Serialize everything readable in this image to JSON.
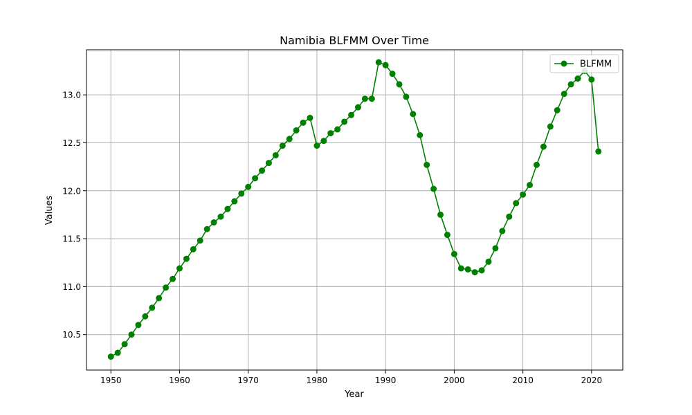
{
  "chart_data": {
    "type": "line",
    "title": "Namibia BLFMM Over Time",
    "xlabel": "Year",
    "ylabel": "Values",
    "xlim": [
      1946.45,
      2024.55
    ],
    "ylim": [
      10.13,
      13.47
    ],
    "x_ticks": [
      1950,
      1960,
      1970,
      1980,
      1990,
      2000,
      2010,
      2020
    ],
    "y_ticks": [
      10.5,
      11.0,
      11.5,
      12.0,
      12.5,
      13.0
    ],
    "y_tick_labels": [
      "10.5",
      "11.0",
      "11.5",
      "12.0",
      "12.5",
      "13.0"
    ],
    "grid": true,
    "legend_position": "top-right",
    "series": [
      {
        "name": "BLFMM",
        "color": "#008000",
        "marker": "circle",
        "x": [
          1950,
          1951,
          1952,
          1953,
          1954,
          1955,
          1956,
          1957,
          1958,
          1959,
          1960,
          1961,
          1962,
          1963,
          1964,
          1965,
          1966,
          1967,
          1968,
          1969,
          1970,
          1971,
          1972,
          1973,
          1974,
          1975,
          1976,
          1977,
          1978,
          1979,
          1980,
          1981,
          1982,
          1983,
          1984,
          1985,
          1986,
          1987,
          1988,
          1989,
          1990,
          1991,
          1992,
          1993,
          1994,
          1995,
          1996,
          1997,
          1998,
          1999,
          2000,
          2001,
          2002,
          2003,
          2004,
          2005,
          2006,
          2007,
          2008,
          2009,
          2010,
          2011,
          2012,
          2013,
          2014,
          2015,
          2016,
          2017,
          2018,
          2019,
          2020,
          2021
        ],
        "values": [
          10.27,
          10.31,
          10.4,
          10.5,
          10.6,
          10.69,
          10.78,
          10.88,
          10.99,
          11.08,
          11.19,
          11.29,
          11.39,
          11.48,
          11.6,
          11.67,
          11.73,
          11.81,
          11.89,
          11.97,
          12.04,
          12.13,
          12.21,
          12.29,
          12.37,
          12.47,
          12.54,
          12.63,
          12.71,
          12.76,
          12.47,
          12.52,
          12.6,
          12.64,
          12.72,
          12.79,
          12.87,
          12.96,
          12.96,
          13.34,
          13.31,
          13.22,
          13.11,
          12.98,
          12.8,
          12.58,
          12.27,
          12.02,
          11.75,
          11.54,
          11.34,
          11.19,
          11.18,
          11.15,
          11.17,
          11.26,
          11.4,
          11.58,
          11.73,
          11.87,
          11.96,
          12.06,
          12.27,
          12.46,
          12.67,
          12.84,
          13.01,
          13.11,
          13.17,
          13.25,
          13.16,
          12.41
        ]
      }
    ]
  }
}
